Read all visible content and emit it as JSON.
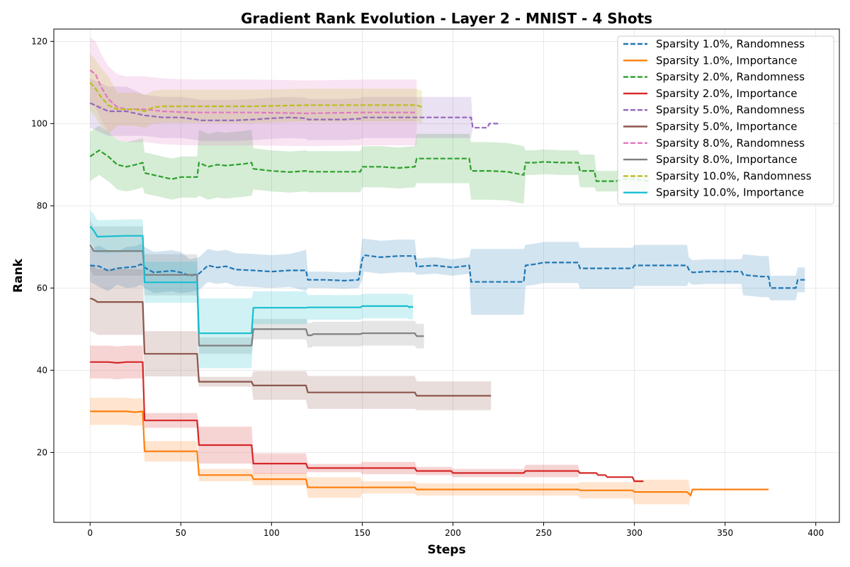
{
  "chart_data": {
    "type": "line",
    "title": "Gradient Rank Evolution - Layer 2 - MNIST - 4 Shots",
    "xlabel": "Steps",
    "ylabel": "Rank",
    "xlim": [
      -20,
      413
    ],
    "ylim": [
      3,
      123
    ],
    "xticks": [
      0,
      50,
      100,
      150,
      200,
      250,
      300,
      350,
      400
    ],
    "yticks": [
      20,
      40,
      60,
      80,
      100,
      120
    ],
    "grid": true,
    "legend_position": "top-right",
    "series": [
      {
        "name": "Sparsity 1.0%, Randomness",
        "color": "#1f77b4",
        "dash": true,
        "x": [
          0,
          5,
          10,
          15,
          20,
          25,
          28,
          30,
          35,
          40,
          45,
          50,
          55,
          60,
          65,
          70,
          75,
          80,
          90,
          100,
          110,
          119,
          120,
          130,
          140,
          148,
          150,
          151,
          160,
          170,
          179,
          180,
          190,
          200,
          209,
          210,
          220,
          230,
          239,
          240,
          245,
          250,
          260,
          269,
          270,
          280,
          290,
          299,
          300,
          310,
          320,
          329,
          330,
          332,
          340,
          350,
          359,
          360,
          370,
          374,
          375,
          380,
          389,
          390,
          394
        ],
        "y": [
          65.5,
          65.3,
          64.2,
          64.8,
          65.0,
          65.2,
          65.8,
          65.0,
          63.8,
          64.0,
          64.2,
          63.8,
          63.0,
          63.5,
          65.5,
          65.0,
          65.3,
          64.5,
          64.3,
          64.0,
          64.3,
          64.3,
          62.0,
          62.0,
          61.8,
          62.0,
          67.0,
          68.0,
          67.5,
          67.8,
          67.8,
          65.2,
          65.5,
          65.0,
          65.5,
          61.5,
          61.5,
          61.5,
          61.5,
          65.5,
          65.8,
          66.2,
          66.2,
          66.2,
          64.8,
          64.8,
          64.8,
          64.8,
          65.5,
          65.5,
          65.5,
          65.5,
          64.5,
          63.8,
          64.0,
          64.0,
          64.0,
          63.2,
          62.8,
          62.8,
          60.0,
          60.0,
          60.0,
          62.0,
          62.0
        ],
        "band": [
          4,
          5,
          5,
          4,
          5,
          5,
          5,
          5,
          5,
          5,
          5,
          5,
          4,
          4,
          4,
          4,
          4,
          4,
          4,
          4,
          4,
          5,
          2,
          2,
          2,
          2,
          5,
          4,
          4,
          4,
          4,
          2,
          2,
          2,
          2,
          8,
          8,
          8,
          8,
          5,
          5,
          5,
          5,
          5,
          5,
          5,
          5,
          5,
          5,
          5,
          5,
          5,
          3,
          3,
          3,
          3,
          3,
          5,
          5,
          5,
          3,
          3,
          3,
          3,
          3
        ]
      },
      {
        "name": "Sparsity 1.0%, Importance",
        "color": "#ff7f0e",
        "dash": false,
        "x": [
          0,
          20,
          25,
          29,
          30,
          59,
          60,
          89,
          90,
          119,
          120,
          149,
          150,
          179,
          180,
          209,
          210,
          239,
          240,
          269,
          270,
          299,
          300,
          329,
          330,
          331,
          332,
          360,
          374
        ],
        "y": [
          30.0,
          30.0,
          29.8,
          30.0,
          20.3,
          20.3,
          14.5,
          14.5,
          13.5,
          13.5,
          11.5,
          11.5,
          11.5,
          11.5,
          11.0,
          11.0,
          11.0,
          11.0,
          11.0,
          11.0,
          10.8,
          10.8,
          10.4,
          10.4,
          10.0,
          9.5,
          11.0,
          11.0,
          11.0
        ],
        "band": [
          3.3,
          3.3,
          3.3,
          3.3,
          2.5,
          2.5,
          1.5,
          1.5,
          1.5,
          1.5,
          2.5,
          2.5,
          1.5,
          1.5,
          1.5,
          1.5,
          1.5,
          1.5,
          1.5,
          1.5,
          2.0,
          2.0,
          3.0,
          3.0,
          3.0,
          0,
          0,
          0,
          0
        ]
      },
      {
        "name": "Sparsity 2.0%, Randomness",
        "color": "#2ca02c",
        "dash": true,
        "x": [
          0,
          5,
          10,
          15,
          20,
          25,
          29,
          30,
          35,
          40,
          45,
          50,
          55,
          59,
          60,
          65,
          70,
          75,
          80,
          85,
          89,
          90,
          100,
          110,
          119,
          120,
          130,
          140,
          149,
          150,
          160,
          170,
          179,
          180,
          190,
          200,
          209,
          210,
          220,
          230,
          239,
          240,
          245,
          250,
          260,
          269,
          270,
          278,
          279,
          280,
          290,
          293,
          300,
          308
        ],
        "y": [
          92,
          93.5,
          92,
          90,
          89.5,
          90,
          90.5,
          88,
          87.5,
          87,
          86.5,
          87,
          87,
          87,
          90.5,
          89.5,
          90,
          89.8,
          90,
          90.2,
          90.5,
          89,
          88.5,
          88.2,
          88.5,
          88.3,
          88.3,
          88.3,
          88.3,
          89.5,
          89.5,
          89.2,
          89.5,
          91.5,
          91.5,
          91.5,
          91.5,
          88.5,
          88.5,
          88.3,
          87.5,
          90.5,
          90.5,
          90.7,
          90.5,
          90.5,
          88.5,
          88.5,
          86,
          86,
          86,
          86.5,
          86.5,
          86
        ],
        "band": [
          6,
          6,
          6,
          6,
          6,
          6,
          6,
          5,
          5,
          5,
          5,
          5,
          5,
          5,
          8,
          8,
          8,
          8,
          8,
          8,
          8,
          5,
          5,
          5,
          5,
          5,
          5,
          5,
          5,
          5,
          5,
          5,
          5,
          6,
          6,
          6,
          6,
          7,
          7,
          7,
          7,
          3,
          3,
          3,
          3,
          3,
          4,
          4,
          2.5,
          2.5,
          2.5,
          2.5,
          2.5,
          2.5
        ]
      },
      {
        "name": "Sparsity 2.0%, Importance",
        "color": "#d62728",
        "dash": false,
        "x": [
          0,
          10,
          15,
          20,
          29,
          30,
          59,
          60,
          89,
          90,
          119,
          120,
          149,
          150,
          179,
          180,
          199,
          200,
          239,
          240,
          269,
          270,
          279,
          280,
          284,
          285,
          299,
          300,
          305
        ],
        "y": [
          42.0,
          42.0,
          41.8,
          42.0,
          42.0,
          27.8,
          27.8,
          21.8,
          21.8,
          17.3,
          17.3,
          16.2,
          16.2,
          16.2,
          16.2,
          15.5,
          15.5,
          15.0,
          15.0,
          15.5,
          15.5,
          15.0,
          15.0,
          14.5,
          14.5,
          14.0,
          14.0,
          13.0,
          13.0
        ],
        "band": [
          4,
          4,
          4,
          4,
          4,
          1.8,
          1.8,
          4.5,
          4.5,
          2.5,
          2.5,
          1.0,
          1.0,
          1.5,
          1.5,
          1.0,
          1.0,
          1.0,
          1.0,
          1.5,
          1.5,
          0,
          0,
          0,
          0,
          0,
          0,
          0,
          0
        ]
      },
      {
        "name": "Sparsity 5.0%, Randomness",
        "color": "#9467bd",
        "dash": true,
        "x": [
          0,
          5,
          10,
          15,
          20,
          30,
          40,
          50,
          59,
          60,
          80,
          90,
          100,
          110,
          119,
          120,
          140,
          149,
          150,
          160,
          170,
          180,
          190,
          200,
          210,
          211,
          219,
          220,
          225
        ],
        "y": [
          105,
          104,
          103,
          103,
          103,
          102,
          101.5,
          101.5,
          101,
          100.8,
          100.8,
          101,
          101.3,
          101.5,
          101.3,
          101.0,
          101.0,
          101.2,
          101.5,
          101.5,
          101.5,
          101.5,
          101.5,
          101.5,
          101.5,
          99.0,
          99.0,
          100.0,
          100.0
        ],
        "band": [
          6,
          6,
          6,
          6,
          6,
          5,
          5,
          5,
          5,
          5,
          5,
          5,
          5,
          5,
          5,
          5,
          5,
          5,
          5,
          5,
          5,
          5,
          5,
          5,
          5,
          0,
          0,
          0,
          0
        ]
      },
      {
        "name": "Sparsity 5.0%, Importance",
        "color": "#8c564b",
        "dash": false,
        "x": [
          0,
          2,
          4,
          29,
          30,
          59,
          60,
          89,
          90,
          119,
          120,
          179,
          180,
          221
        ],
        "y": [
          57.5,
          57.2,
          56.6,
          56.6,
          44.0,
          44.0,
          37.2,
          37.2,
          36.3,
          36.3,
          34.6,
          34.6,
          33.8,
          33.8
        ],
        "band": [
          8,
          8,
          8,
          8,
          5.5,
          5.5,
          1.2,
          1.2,
          3.5,
          3.5,
          4,
          4,
          3.5,
          3.5
        ]
      },
      {
        "name": "Sparsity 8.0%, Randomness",
        "color": "#e377c2",
        "dash": true,
        "x": [
          0,
          3,
          6,
          10,
          15,
          20,
          25,
          30,
          40,
          50,
          60,
          70,
          90,
          120,
          150,
          180
        ],
        "y": [
          113,
          112,
          109,
          106,
          104,
          103.5,
          103.5,
          103.5,
          103,
          102.8,
          102.7,
          102.7,
          102.7,
          102.5,
          102.7,
          102.7
        ],
        "band": [
          8,
          8,
          8,
          8,
          8,
          8,
          8,
          8,
          8,
          8,
          8,
          8,
          8,
          8,
          8,
          8
        ]
      },
      {
        "name": "Sparsity 8.0%, Importance",
        "color": "#7f7f7f",
        "dash": false,
        "x": [
          0,
          2,
          29,
          30,
          59,
          60,
          89,
          90,
          119,
          120,
          122,
          123,
          149,
          150,
          179,
          180,
          184
        ],
        "y": [
          70.5,
          69.0,
          69.0,
          63.2,
          63.2,
          46.0,
          46.0,
          50.0,
          50.0,
          48.5,
          48.5,
          48.8,
          48.8,
          49.0,
          49.0,
          48.3,
          48.3
        ],
        "band": [
          6,
          6,
          6,
          5,
          5,
          2,
          2,
          2.5,
          2.5,
          3,
          3,
          3,
          3,
          3,
          3,
          3,
          3
        ]
      },
      {
        "name": "Sparsity 10.0%, Randomness",
        "color": "#bcbd22",
        "dash": true,
        "x": [
          0,
          3,
          6,
          10,
          15,
          20,
          25,
          30,
          35,
          40,
          50,
          60,
          80,
          90,
          120,
          150,
          180,
          183
        ],
        "y": [
          110,
          108.5,
          106.5,
          104.5,
          103.5,
          103.5,
          103.5,
          103,
          104,
          104.2,
          104.2,
          104.2,
          104.2,
          104.2,
          104.5,
          104.5,
          104.5,
          104.0
        ],
        "band": [
          7,
          7,
          7,
          7,
          4,
          4,
          4,
          4,
          4,
          4,
          4,
          4,
          4,
          4,
          4,
          4,
          4,
          4
        ]
      },
      {
        "name": "Sparsity 10.0%, Importance",
        "color": "#17becf",
        "dash": false,
        "x": [
          0,
          2,
          4,
          20,
          29,
          30,
          59,
          60,
          89,
          90,
          119,
          120,
          149,
          150,
          175,
          176,
          177,
          178
        ],
        "y": [
          75.0,
          74.0,
          72.5,
          72.7,
          72.7,
          61.4,
          61.4,
          49.0,
          49.0,
          55.2,
          55.2,
          55.3,
          55.3,
          55.6,
          55.6,
          55.3,
          55.5,
          55.3
        ],
        "band": [
          4,
          4,
          4,
          4,
          4,
          5,
          5,
          8.5,
          8.5,
          4,
          4,
          3,
          3,
          3,
          3,
          3,
          3,
          3
        ]
      }
    ]
  }
}
